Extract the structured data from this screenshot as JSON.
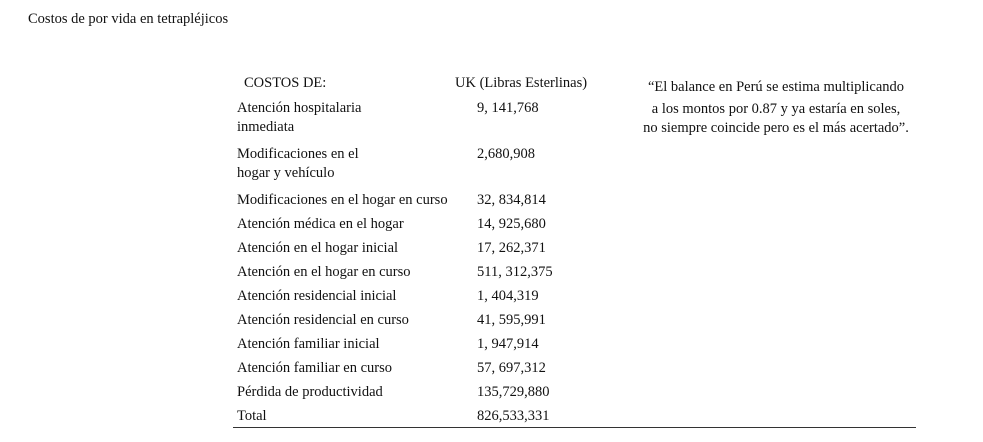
{
  "document": {
    "title": "Costos de por vida en tetrapléjicos"
  },
  "table": {
    "headers": {
      "costs": "COSTOS DE:",
      "uk": "UK (Libras Esterlinas)"
    },
    "rows": [
      {
        "label_lines": [
          "Atención hospitalaria",
          "inmediata"
        ],
        "value": "9, 141,768"
      },
      {
        "label_lines": [
          "Modificaciones en el",
          "hogar y vehículo"
        ],
        "value": "2,680,908"
      },
      {
        "label_lines": [
          "Modificaciones en el hogar en curso"
        ],
        "value": "32, 834,814"
      },
      {
        "label_lines": [
          "Atención médica en el hogar"
        ],
        "value": "14, 925,680"
      },
      {
        "label_lines": [
          "Atención en el hogar inicial"
        ],
        "value": "17, 262,371"
      },
      {
        "label_lines": [
          "Atención en el hogar en curso"
        ],
        "value": "511, 312,375"
      },
      {
        "label_lines": [
          "Atención residencial inicial"
        ],
        "value": "1, 404,319"
      },
      {
        "label_lines": [
          "Atención residencial en curso"
        ],
        "value": "41, 595,991"
      },
      {
        "label_lines": [
          "Atención familiar inicial"
        ],
        "value": "1, 947,914"
      },
      {
        "label_lines": [
          "Atención familiar en curso"
        ],
        "value": "57, 697,312"
      },
      {
        "label_lines": [
          "Pérdida de productividad"
        ],
        "value": "135,729,880"
      },
      {
        "label_lines": [
          "Total"
        ],
        "value": "826,533,331"
      }
    ]
  },
  "note": {
    "line1": "“El balance en Perú se estima multiplicando",
    "line2": "a los montos por 0.87 y ya estaría en soles,",
    "line3": "no siempre coincide pero es el más acertado”."
  }
}
